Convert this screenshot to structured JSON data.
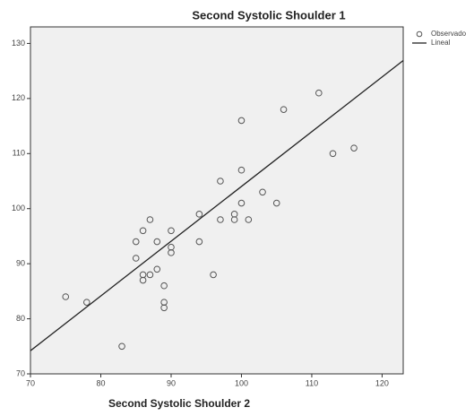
{
  "chart_data": {
    "type": "scatter",
    "title": "Second Systolic Shoulder 1",
    "x_label": "Second Systolic Shoulder 2",
    "xlim": [
      70,
      123
    ],
    "ylim": [
      70,
      133
    ],
    "xticks": [
      70,
      80,
      90,
      100,
      110,
      120
    ],
    "yticks": [
      70,
      80,
      90,
      100,
      110,
      120,
      130
    ],
    "series": [
      {
        "name": "Observado",
        "type": "scatter",
        "color": "#555555",
        "x": [
          75,
          78,
          83,
          85,
          85,
          86,
          86,
          86,
          87,
          87,
          88,
          88,
          89,
          89,
          89,
          90,
          90,
          90,
          94,
          94,
          96,
          97,
          97,
          99,
          99,
          100,
          100,
          100,
          101,
          103,
          105,
          106,
          111,
          113,
          116
        ],
        "values": [
          84,
          83,
          75,
          94,
          91,
          96,
          88,
          87,
          98,
          88,
          94,
          89,
          86,
          83,
          82,
          96,
          93,
          92,
          99,
          94,
          88,
          105,
          98,
          99,
          98,
          116,
          107,
          101,
          98,
          103,
          101,
          118,
          121,
          110,
          111
        ]
      },
      {
        "name": "Lineal",
        "type": "line",
        "color": "#222222",
        "x": [
          70,
          123
        ],
        "values": [
          74.2,
          126.9
        ]
      }
    ]
  }
}
